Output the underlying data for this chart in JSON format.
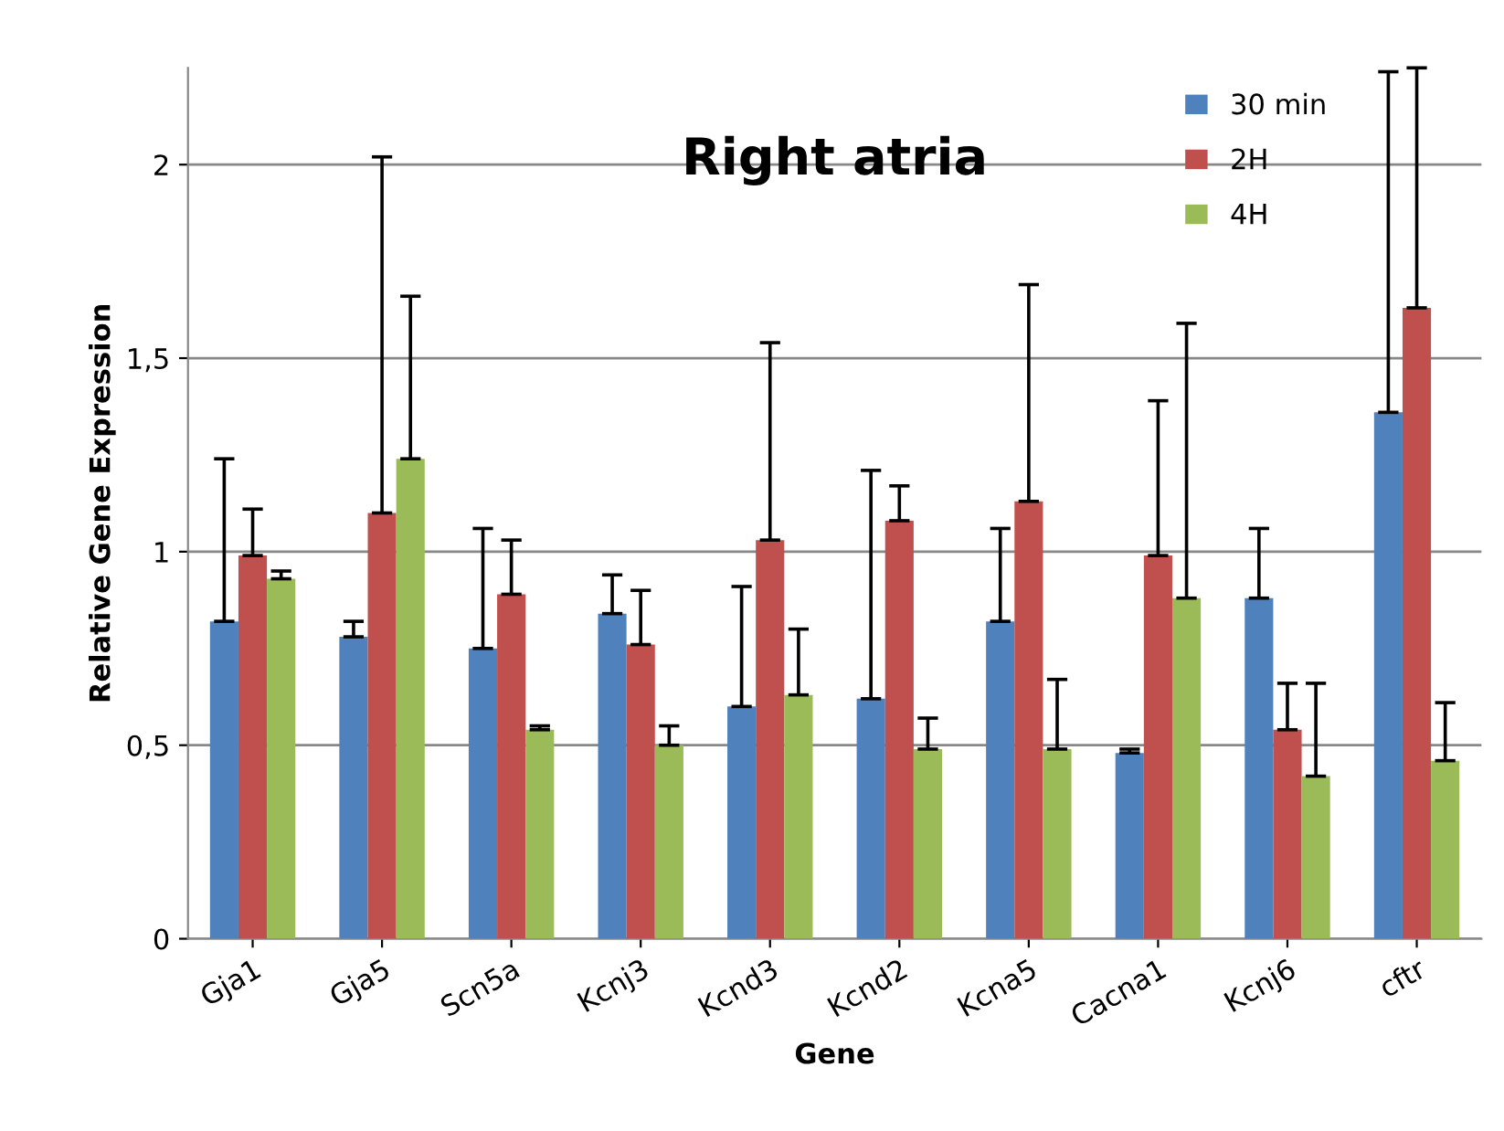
{
  "chart_data": {
    "type": "bar",
    "title": "Right atria",
    "xlabel": "Gene",
    "ylabel": "Relative Gene Expression",
    "categories": [
      "Gja1",
      "Gja5",
      "Scn5a",
      "Kcnj3",
      "Kcnd3",
      "Kcnd2",
      "Kcna5",
      "Cacna1",
      "Kcnj6",
      "cftr"
    ],
    "series": [
      {
        "name": "30 min",
        "color": "#4f81bd",
        "values": [
          0.82,
          0.78,
          0.75,
          0.84,
          0.6,
          0.62,
          0.82,
          0.48,
          0.88,
          1.36
        ],
        "errors": [
          [
            0.82,
            1.24
          ],
          [
            0.78,
            0.82
          ],
          [
            0.75,
            1.06
          ],
          [
            0.84,
            0.94
          ],
          [
            0.6,
            0.91
          ],
          [
            0.62,
            1.21
          ],
          [
            0.82,
            1.06
          ],
          [
            0.48,
            0.49
          ],
          [
            0.88,
            1.06
          ],
          [
            1.36,
            2.24
          ]
        ]
      },
      {
        "name": "2H",
        "color": "#c0504d",
        "values": [
          0.99,
          1.1,
          0.89,
          0.76,
          1.03,
          1.08,
          1.13,
          0.99,
          0.54,
          1.63
        ],
        "errors": [
          [
            0.99,
            1.11
          ],
          [
            1.1,
            2.02
          ],
          [
            0.89,
            1.03
          ],
          [
            0.76,
            0.9
          ],
          [
            1.03,
            1.54
          ],
          [
            1.08,
            1.17
          ],
          [
            1.13,
            1.69
          ],
          [
            0.99,
            1.39
          ],
          [
            0.54,
            0.66
          ],
          [
            1.63,
            2.25
          ]
        ]
      },
      {
        "name": "4H",
        "color": "#9bbb59",
        "values": [
          0.93,
          1.24,
          0.54,
          0.5,
          0.63,
          0.49,
          0.49,
          0.88,
          0.42,
          0.46
        ],
        "errors": [
          [
            0.93,
            0.95
          ],
          [
            1.24,
            1.66
          ],
          [
            0.54,
            0.55
          ],
          [
            0.5,
            0.55
          ],
          [
            0.63,
            0.8
          ],
          [
            0.49,
            0.57
          ],
          [
            0.49,
            0.67
          ],
          [
            0.88,
            1.59
          ],
          [
            0.42,
            0.66
          ],
          [
            0.46,
            0.61
          ]
        ]
      }
    ],
    "ylim": [
      0,
      2.25
    ],
    "yticks": [
      0,
      {
        "value": 0.5,
        "label": "0,5"
      },
      1,
      {
        "value": 1.5,
        "label": "1,5"
      },
      2
    ],
    "grid": "y",
    "legend": "top right"
  }
}
